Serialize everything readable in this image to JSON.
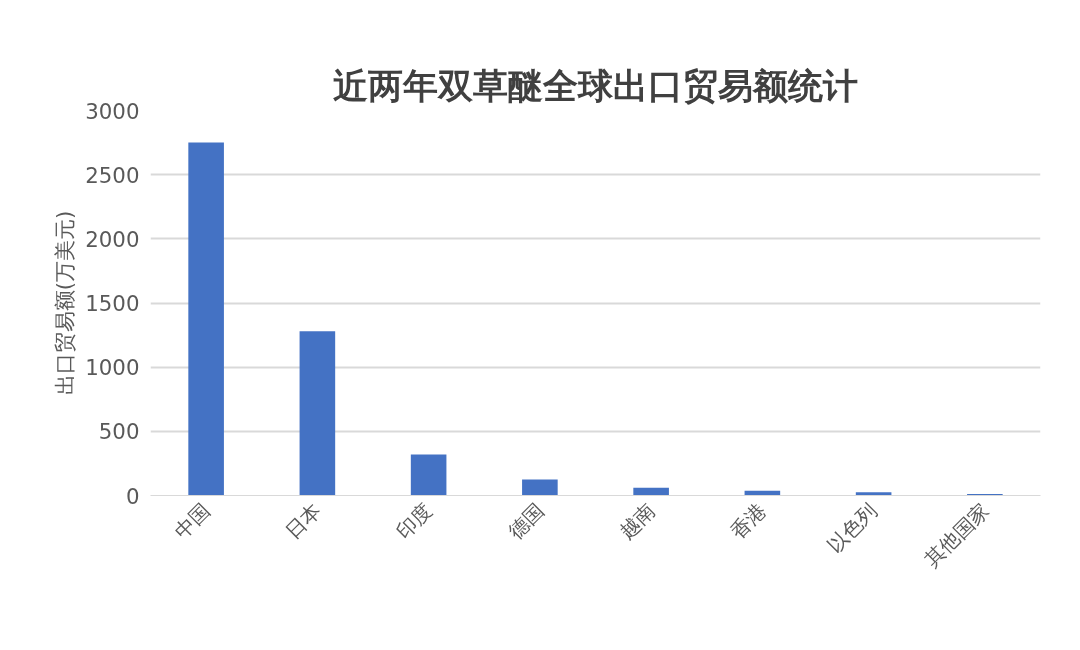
{
  "chart_data": {
    "type": "bar",
    "title": "近两年双草醚全球出口贸易额统计",
    "ylabel": "出口贸易额(万美元)",
    "categories": [
      "中国",
      "日本",
      "印度",
      "德国",
      "越南",
      "香港",
      "以色列",
      "其他国家"
    ],
    "values": [
      2750,
      1280,
      320,
      125,
      60,
      37,
      25,
      12
    ],
    "color": "#4472c4",
    "ylim": [
      0,
      3000
    ],
    "yticks": [
      0,
      500,
      1000,
      1500,
      2000,
      2500,
      3000
    ],
    "grid": "y"
  }
}
